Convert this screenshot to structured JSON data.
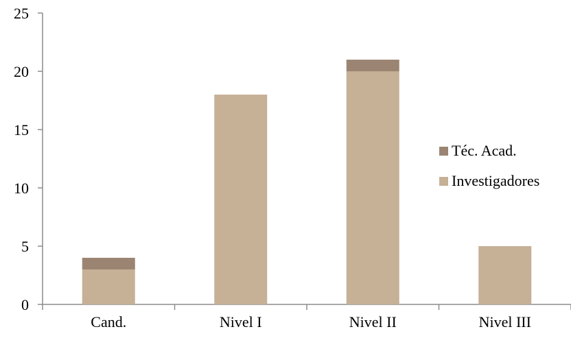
{
  "chart_data": {
    "type": "bar",
    "stacked": true,
    "categories": [
      "Cand.",
      "Nivel I",
      "Nivel II",
      "Nivel III"
    ],
    "series": [
      {
        "name": "Investigadores",
        "values": [
          3,
          18,
          20,
          5
        ],
        "color": "#c6b096"
      },
      {
        "name": "Téc. Acad.",
        "values": [
          1,
          0,
          1,
          0
        ],
        "color": "#9b8572"
      }
    ],
    "ylim": [
      0,
      25
    ],
    "yticks": [
      "0",
      "5",
      "10",
      "15",
      "20",
      "25"
    ],
    "grid": false,
    "legend_position": "right",
    "legend_order": [
      "Téc. Acad.",
      "Investigadores"
    ]
  }
}
